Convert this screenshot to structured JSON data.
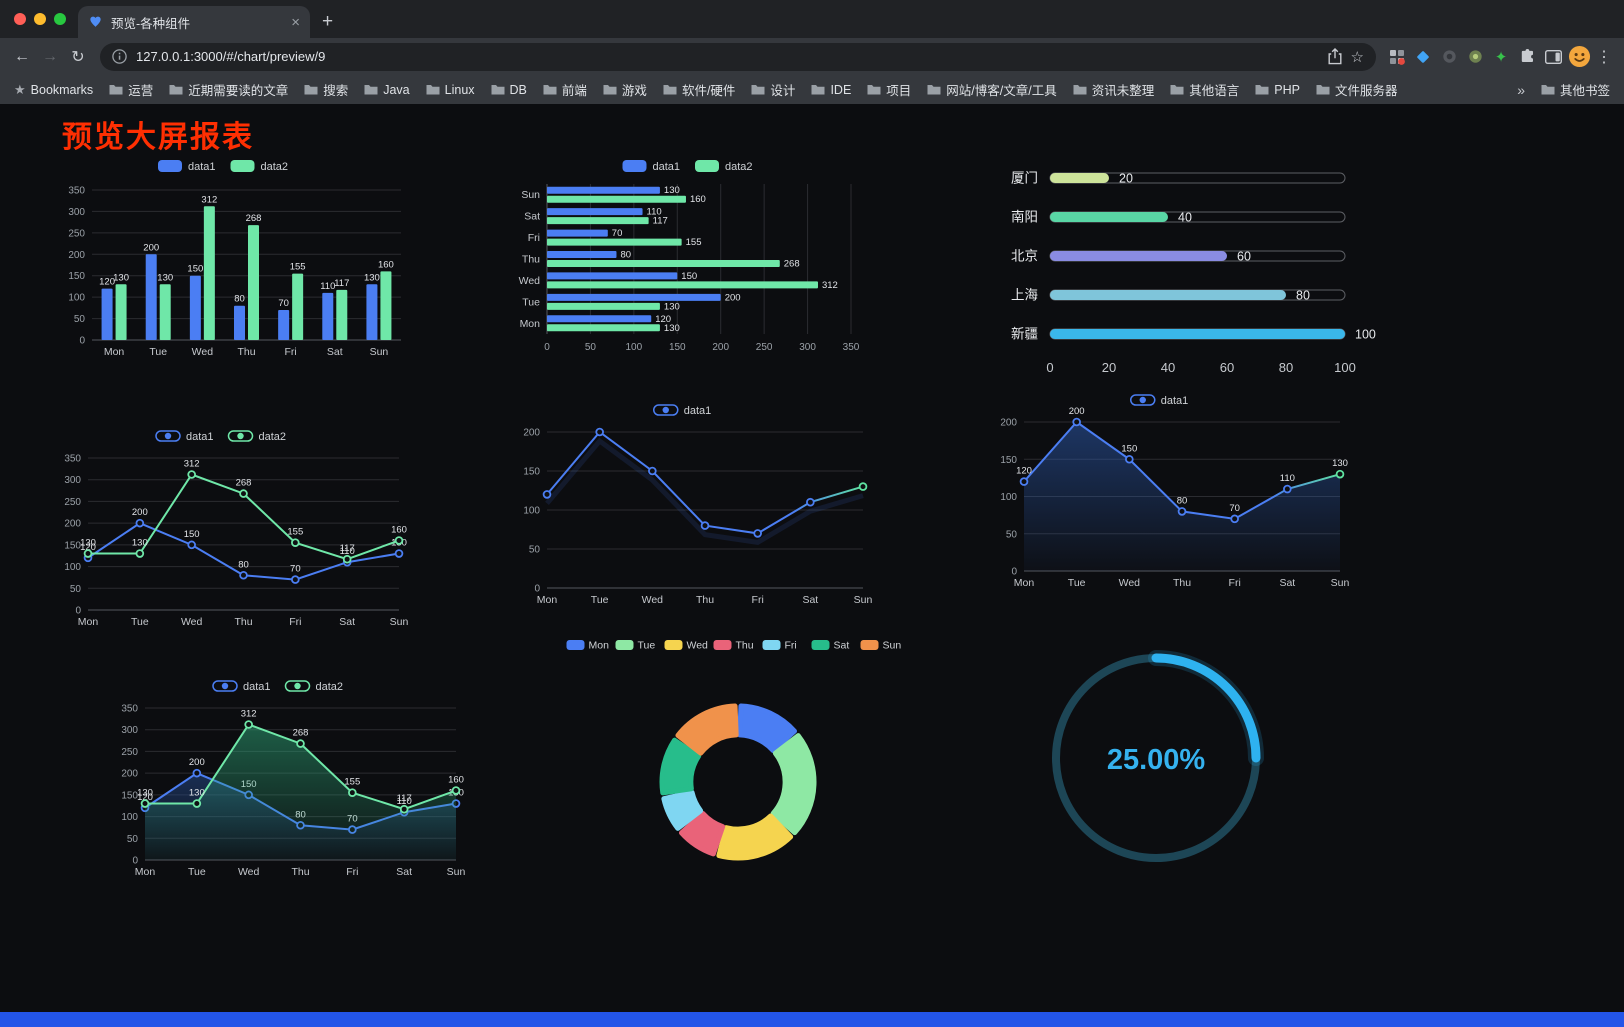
{
  "browser": {
    "tab": {
      "title": "预览-各种组件",
      "close_glyph": "×",
      "new_tab_glyph": "+"
    },
    "toolbar": {
      "back_glyph": "←",
      "forward_glyph": "→",
      "reload_glyph": "↻",
      "url": "127.0.0.1:3000/#/chart/preview/9",
      "star_glyph": "☆",
      "ext_star_glyph": "✦",
      "menu_glyph": "⋮"
    },
    "bookmarks": {
      "root_label": "Bookmarks",
      "items": [
        "运营",
        "近期需要读的文章",
        "搜索",
        "Java",
        "Linux",
        "DB",
        "前端",
        "游戏",
        "软件/硬件",
        "设计",
        "IDE",
        "项目",
        "网站/博客/文章/工具",
        "资讯未整理",
        "其他语言",
        "PHP",
        "文件服务器"
      ],
      "overflow_glyph": "»",
      "other_label": "其他书签"
    }
  },
  "page": {
    "title": "预览大屏报表",
    "accent_color": "#ff2f02",
    "footer_color": "#2355e8"
  },
  "chart_data": [
    {
      "type": "bar",
      "orientation": "vertical",
      "categories": [
        "Mon",
        "Tue",
        "Wed",
        "Thu",
        "Fri",
        "Sat",
        "Sun"
      ],
      "series": [
        {
          "name": "data1",
          "color": "#4b7ef3",
          "values": [
            120,
            200,
            150,
            80,
            70,
            110,
            130
          ]
        },
        {
          "name": "data2",
          "color": "#6fe7a8",
          "values": [
            130,
            130,
            312,
            268,
            155,
            117,
            160
          ]
        }
      ],
      "ylim": [
        0,
        350
      ],
      "yticks": [
        0,
        50,
        100,
        150,
        200,
        250,
        300,
        350
      ],
      "legend_position": "top",
      "grid": true
    },
    {
      "type": "bar",
      "orientation": "horizontal",
      "categories": [
        "Mon",
        "Tue",
        "Wed",
        "Thu",
        "Fri",
        "Sat",
        "Sun"
      ],
      "series": [
        {
          "name": "data1",
          "color": "#4b7ef3",
          "values": [
            120,
            200,
            150,
            80,
            70,
            110,
            130
          ]
        },
        {
          "name": "data2",
          "color": "#6fe7a8",
          "values": [
            130,
            130,
            312,
            268,
            155,
            117,
            160
          ]
        }
      ],
      "xlim": [
        0,
        350
      ],
      "xticks": [
        0,
        50,
        100,
        150,
        200,
        250,
        300,
        350
      ],
      "legend_position": "top",
      "grid": true
    },
    {
      "type": "progress",
      "xlim": [
        0,
        100
      ],
      "xticks": [
        0,
        20,
        40,
        60,
        80,
        100
      ],
      "rows": [
        {
          "label": "厦门",
          "value": 20,
          "color": "#cde39a"
        },
        {
          "label": "南阳",
          "value": 40,
          "color": "#59d6a5"
        },
        {
          "label": "北京",
          "value": 60,
          "color": "#8a8ce2"
        },
        {
          "label": "上海",
          "value": 80,
          "color": "#7fc5da"
        },
        {
          "label": "新疆",
          "value": 100,
          "color": "#3ab7ea"
        }
      ]
    },
    {
      "type": "line",
      "categories": [
        "Mon",
        "Tue",
        "Wed",
        "Thu",
        "Fri",
        "Sat",
        "Sun"
      ],
      "series": [
        {
          "name": "data1",
          "color": "#4b7ef3",
          "values": [
            120,
            200,
            150,
            80,
            70,
            110,
            130
          ]
        },
        {
          "name": "data2",
          "color": "#6fe7a8",
          "values": [
            130,
            130,
            312,
            268,
            155,
            117,
            160
          ]
        }
      ],
      "ylim": [
        0,
        350
      ],
      "yticks": [
        0,
        50,
        100,
        150,
        200,
        250,
        300,
        350
      ],
      "show_labels": true,
      "legend_position": "top",
      "grid": true
    },
    {
      "type": "line",
      "categories": [
        "Mon",
        "Tue",
        "Wed",
        "Thu",
        "Fri",
        "Sat",
        "Sun"
      ],
      "series": [
        {
          "name": "data1",
          "color": "#4b7ef3",
          "gradient_end": "#5fe3a1",
          "values": [
            120,
            200,
            150,
            80,
            70,
            110,
            130
          ]
        }
      ],
      "ylim": [
        0,
        200
      ],
      "yticks": [
        0,
        50,
        100,
        150,
        200
      ],
      "show_labels": false,
      "shadow": true,
      "legend_position": "top",
      "grid": true
    },
    {
      "type": "area",
      "categories": [
        "Mon",
        "Tue",
        "Wed",
        "Thu",
        "Fri",
        "Sat",
        "Sun"
      ],
      "series": [
        {
          "name": "data1",
          "color": "#4b7ef3",
          "area": "#2e5fb8",
          "gradient_end": "#5fe3a1",
          "values": [
            120,
            200,
            150,
            80,
            70,
            110,
            130
          ]
        }
      ],
      "ylim": [
        0,
        200
      ],
      "yticks": [
        0,
        50,
        100,
        150,
        200
      ],
      "show_labels": true,
      "legend_position": "top",
      "grid": true
    },
    {
      "type": "area",
      "categories": [
        "Mon",
        "Tue",
        "Wed",
        "Thu",
        "Fri",
        "Sat",
        "Sun"
      ],
      "series": [
        {
          "name": "data1",
          "color": "#4b7ef3",
          "area": "#274f96",
          "values": [
            120,
            200,
            150,
            80,
            70,
            110,
            130
          ]
        },
        {
          "name": "data2",
          "color": "#6fe7a8",
          "area": "#2fae7d",
          "values": [
            130,
            130,
            312,
            268,
            155,
            117,
            160
          ]
        }
      ],
      "ylim": [
        0,
        350
      ],
      "yticks": [
        0,
        50,
        100,
        150,
        200,
        250,
        300,
        350
      ],
      "show_labels": true,
      "legend_position": "top",
      "grid": true
    },
    {
      "type": "pie",
      "inner_radius_ratio": 0.62,
      "categories": [
        "Mon",
        "Tue",
        "Wed",
        "Thu",
        "Fri",
        "Sat",
        "Sun"
      ],
      "values": [
        120,
        200,
        150,
        80,
        70,
        110,
        130
      ],
      "colors": [
        "#4b7ef3",
        "#8ee8a4",
        "#f5d44f",
        "#e96379",
        "#7fd6f2",
        "#27bd8b",
        "#f0924b"
      ],
      "legend_position": "top"
    },
    {
      "type": "gauge",
      "value": 25,
      "label": "25.00%",
      "color": "#2eb2f0",
      "track_color": "#1d4656",
      "text_color": "#35b2ef"
    }
  ]
}
